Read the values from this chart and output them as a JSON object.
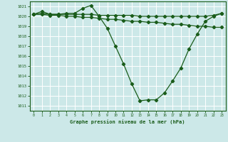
{
  "title": "Graphe pression niveau de la mer (hPa)",
  "bg_color": "#cce8e8",
  "grid_color": "#ffffff",
  "line_color": "#1a5c1a",
  "xlim": [
    -0.5,
    23.5
  ],
  "ylim": [
    1010.5,
    1021.5
  ],
  "yticks": [
    1011,
    1012,
    1013,
    1014,
    1015,
    1016,
    1017,
    1018,
    1019,
    1020,
    1021
  ],
  "xticks": [
    0,
    1,
    2,
    3,
    4,
    5,
    6,
    7,
    8,
    9,
    10,
    11,
    12,
    13,
    14,
    15,
    16,
    17,
    18,
    19,
    20,
    21,
    22,
    23
  ],
  "line1_x": [
    0,
    1,
    2,
    3,
    4,
    5,
    6,
    7,
    8,
    9,
    10,
    11,
    12,
    13,
    14,
    15,
    16,
    17,
    18,
    19,
    20,
    21,
    22,
    23
  ],
  "line1_y": [
    1020.2,
    1020.5,
    1020.2,
    1020.2,
    1020.3,
    1020.3,
    1020.8,
    1021.1,
    1020.0,
    1018.8,
    1017.0,
    1015.2,
    1013.2,
    1011.5,
    1011.6,
    1011.6,
    1012.3,
    1013.5,
    1014.8,
    1016.7,
    1018.2,
    1019.5,
    1020.0,
    1020.3
  ],
  "line2_x": [
    0,
    1,
    2,
    3,
    4,
    5,
    6,
    7,
    8,
    9,
    10,
    11,
    12,
    13,
    14,
    15,
    16,
    17,
    18,
    19,
    20,
    21,
    22,
    23
  ],
  "line2_y": [
    1020.2,
    1020.2,
    1020.1,
    1020.1,
    1020.0,
    1020.0,
    1019.9,
    1019.9,
    1019.8,
    1019.7,
    1019.7,
    1019.6,
    1019.5,
    1019.5,
    1019.4,
    1019.4,
    1019.3,
    1019.2,
    1019.2,
    1019.1,
    1019.0,
    1019.0,
    1018.9,
    1018.9
  ],
  "line3_x": [
    0,
    1,
    2,
    3,
    4,
    5,
    6,
    7,
    8,
    9,
    10,
    11,
    12,
    13,
    14,
    15,
    16,
    17,
    18,
    19,
    20,
    21,
    22,
    23
  ],
  "line3_y": [
    1020.2,
    1020.3,
    1020.2,
    1020.2,
    1020.2,
    1020.2,
    1020.2,
    1020.2,
    1020.1,
    1020.1,
    1020.1,
    1020.1,
    1020.1,
    1020.0,
    1020.0,
    1020.0,
    1020.0,
    1020.0,
    1020.0,
    1020.0,
    1020.0,
    1020.0,
    1020.1,
    1020.3
  ]
}
